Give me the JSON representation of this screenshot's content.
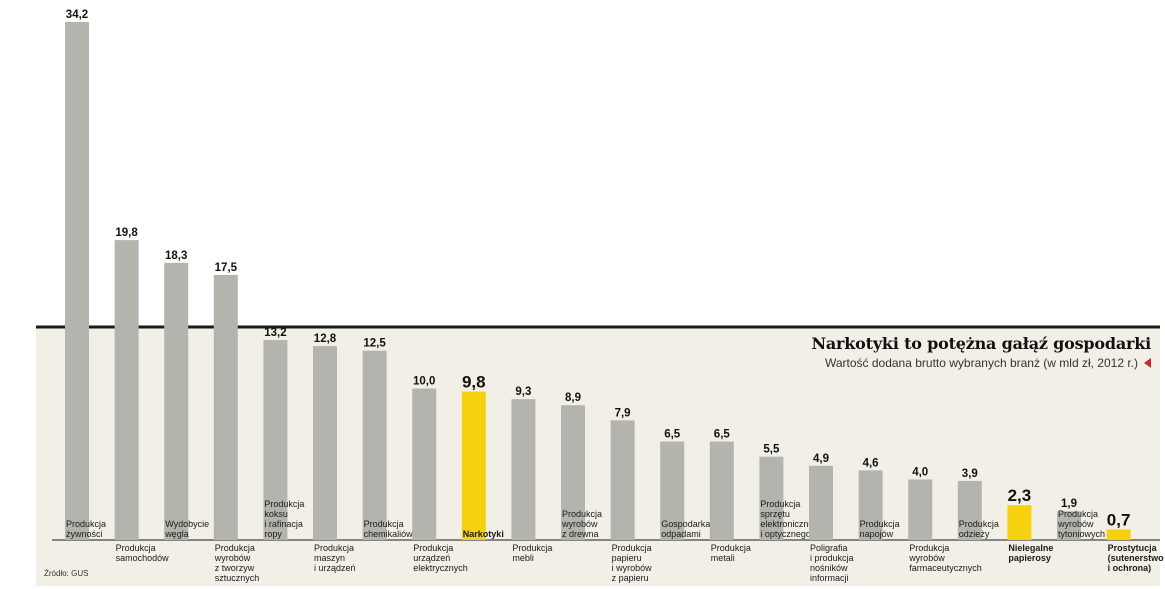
{
  "chart_data": {
    "type": "bar",
    "title": "Narkotyki to potężna gałąź gospodarki",
    "subtitle": "Wartość dodana brutto wybranych branż (w mld zł, 2012 r.)",
    "source": "Źródło: GUS",
    "ylim": [
      0,
      34.2
    ],
    "grid": false,
    "categories": [
      "Produkcja żywności",
      "Produkcja samochodów",
      "Wydobycie węgla",
      "Produkcja wyrobów z tworzyw sztucznych",
      "Produkcja koksu i rafinacja ropy",
      "Produkcja maszyn i urządzeń",
      "Produkcja chemikaliów",
      "Produkcja urządzeń elektrycznych",
      "Narkotyki",
      "Produkcja mebli",
      "Produkcja wyrobów z drewna",
      "Produkcja papieru i wyrobów z papieru",
      "Gospodarka odpadami",
      "Produkcja metali",
      "Produkcja sprzętu elektronicznego i optycznego",
      "Poligrafia i produkcja nośników informacji",
      "Produkcja napojów",
      "Produkcja wyrobów farmaceutycznych",
      "Produkcja odzieży",
      "Nielegalne papierosy",
      "Produkcja wyrobów tytoniowych",
      "Prostytucja (sutenerstwo i ochrona)"
    ],
    "value_labels": [
      "34,2",
      "19,8",
      "18,3",
      "17,5",
      "13,2",
      "12,8",
      "12,5",
      "10,0",
      "9,8",
      "9,3",
      "8,9",
      "7,9",
      "6,5",
      "6,5",
      "5,5",
      "4,9",
      "4,6",
      "4,0",
      "3,9",
      "2,3",
      "1,9",
      "0,7"
    ],
    "values": [
      34.2,
      19.8,
      18.3,
      17.5,
      13.2,
      12.8,
      12.5,
      10.0,
      9.8,
      9.3,
      8.9,
      7.9,
      6.5,
      6.5,
      5.5,
      4.9,
      4.6,
      4.0,
      3.9,
      2.3,
      1.9,
      0.7
    ],
    "highlighted": [
      8,
      19,
      21
    ],
    "label_lines": [
      [
        "Produkcja",
        "żywności"
      ],
      [
        "Produkcja",
        "samochodów"
      ],
      [
        "Wydobycie",
        "węgla"
      ],
      [
        "Produkcja",
        "wyrobów",
        "z tworzyw",
        "sztucznych"
      ],
      [
        "Produkcja",
        "koksu",
        "i rafinacja",
        "ropy"
      ],
      [
        "Produkcja",
        "maszyn",
        "i urządzeń"
      ],
      [
        "Produkcja",
        "chemikaliów"
      ],
      [
        "Produkcja",
        "urządzeń",
        "elektrycznych"
      ],
      [
        "Narkotyki"
      ],
      [
        "Produkcja",
        "mebli"
      ],
      [
        "Produkcja",
        "wyrobów",
        "z drewna"
      ],
      [
        "Produkcja",
        "papieru",
        "i wyrobów",
        "z papieru"
      ],
      [
        "Gospodarka",
        "odpadami"
      ],
      [
        "Produkcja",
        "metali"
      ],
      [
        "Produkcja",
        "sprzętu",
        "elektronicznego",
        "i optycznego"
      ],
      [
        "Poligrafia",
        "i produkcja",
        "nośników",
        "informacji"
      ],
      [
        "Produkcja",
        "napojów"
      ],
      [
        "Produkcja",
        "wyrobów",
        "farmaceutycznych"
      ],
      [
        "Produkcja",
        "odzieży"
      ],
      [
        "Nielegalne",
        "papierosy"
      ],
      [
        "Produkcja",
        "wyrobów",
        "tytoniowych"
      ],
      [
        "Prostytucja",
        "(sutenerstwo",
        "i ochrona)"
      ]
    ],
    "colors": {
      "bar": "#b4b4ae",
      "highlight": "#f5d10e",
      "panel": "#f2efe7",
      "rule": "#1a1a1a",
      "accent": "#d2232a"
    }
  }
}
